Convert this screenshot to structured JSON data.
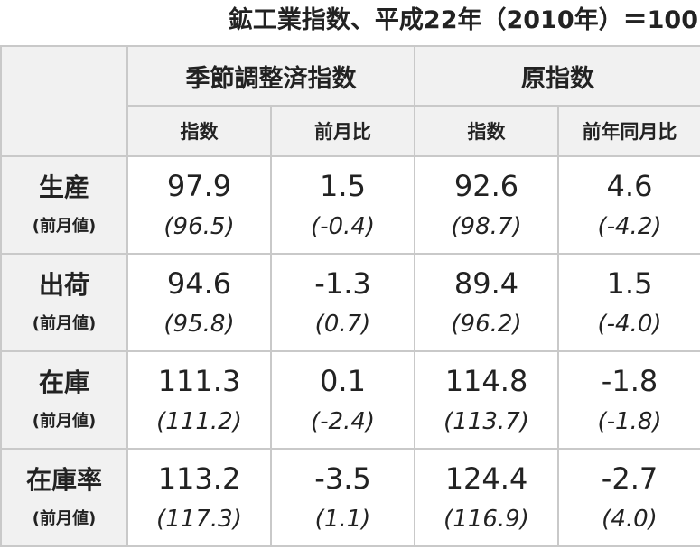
{
  "caption": "鉱工業指数、平成22年（2010年）＝100",
  "groups": [
    {
      "label": "季節調整済指数",
      "cols": [
        "指数",
        "前月比"
      ]
    },
    {
      "label": "原指数",
      "cols": [
        "指数",
        "前年同月比"
      ]
    }
  ],
  "prev_label": "(前月値)",
  "rows": [
    {
      "label": "生産",
      "values": [
        "97.9",
        "1.5",
        "92.6",
        "4.6"
      ],
      "prev": [
        "(96.5)",
        "(-0.4)",
        "(98.7)",
        "(-4.2)"
      ]
    },
    {
      "label": "出荷",
      "values": [
        "94.6",
        "-1.3",
        "89.4",
        "1.5"
      ],
      "prev": [
        "(95.8)",
        "(0.7)",
        "(96.2)",
        "(-4.0)"
      ]
    },
    {
      "label": "在庫",
      "values": [
        "111.3",
        "0.1",
        "114.8",
        "-1.8"
      ],
      "prev": [
        "(111.2)",
        "(-2.4)",
        "(113.7)",
        "(-1.8)"
      ]
    },
    {
      "label": "在庫率",
      "values": [
        "113.2",
        "-3.5",
        "124.4",
        "-2.7"
      ],
      "prev": [
        "(117.3)",
        "(1.1)",
        "(116.9)",
        "(4.0)"
      ]
    }
  ]
}
